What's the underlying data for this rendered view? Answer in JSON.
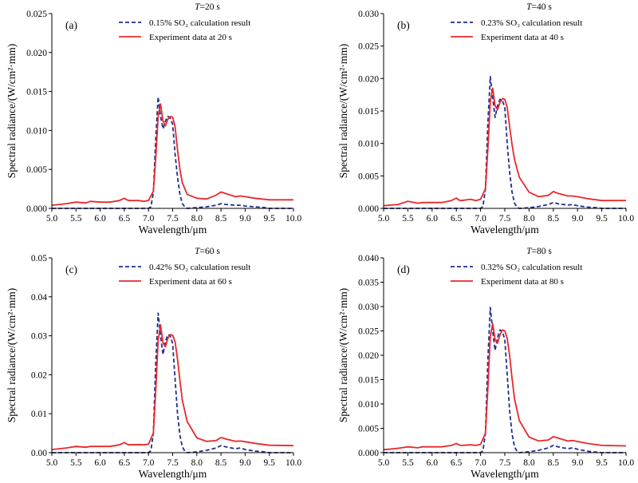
{
  "chart_data": [
    {
      "type": "line",
      "panel_label": "(a)",
      "title": "T=20 s",
      "title_var": "T",
      "title_rest": "=20 s",
      "xlabel": "Wavelength/μm",
      "ylabel": "Spectral radiance/(W/cm²·mm)",
      "xlim": [
        5.0,
        10.0
      ],
      "ylim": [
        0,
        0.025
      ],
      "xticks": [
        "5.0",
        "5.5",
        "6.0",
        "6.5",
        "7.0",
        "7.5",
        "8.0",
        "8.5",
        "9.0",
        "9.5",
        "10.0"
      ],
      "yticks": [
        "0.000",
        "0.005",
        "0.010",
        "0.015",
        "0.020",
        "0.025"
      ],
      "grid": false,
      "legend_position": "top-center",
      "series": [
        {
          "name": "0.15% SO₂ calculation result",
          "color": "#1f2f8f",
          "style": "dashed",
          "x": [
            5.0,
            7.0,
            7.05,
            7.1,
            7.15,
            7.2,
            7.25,
            7.3,
            7.35,
            7.4,
            7.45,
            7.5,
            7.55,
            7.6,
            7.65,
            7.7,
            7.75,
            7.8,
            8.0,
            8.2,
            8.4,
            8.5,
            8.6,
            8.8,
            8.9,
            9.0,
            9.2,
            9.4,
            9.5,
            10.0
          ],
          "y": [
            0.0,
            0.0,
            0.0002,
            0.002,
            0.009,
            0.0143,
            0.0118,
            0.0102,
            0.0112,
            0.0118,
            0.0116,
            0.0108,
            0.007,
            0.004,
            0.0018,
            0.0006,
            0.0002,
            0.0,
            0.0001,
            0.0002,
            0.0004,
            0.0006,
            0.0005,
            0.0004,
            0.0004,
            0.0003,
            0.0002,
            0.0001,
            0.0,
            0.0
          ]
        },
        {
          "name": "Experiment data at 20 s",
          "color": "#e8282b",
          "style": "solid",
          "x": [
            5.0,
            5.3,
            5.5,
            5.7,
            5.8,
            6.0,
            6.2,
            6.4,
            6.5,
            6.55,
            6.6,
            6.8,
            6.9,
            7.0,
            7.1,
            7.15,
            7.2,
            7.25,
            7.3,
            7.35,
            7.4,
            7.45,
            7.5,
            7.55,
            7.6,
            7.65,
            7.7,
            7.8,
            8.0,
            8.2,
            8.4,
            8.5,
            8.6,
            8.8,
            8.9,
            9.0,
            9.2,
            9.5,
            10.0
          ],
          "y": [
            0.0004,
            0.0006,
            0.0008,
            0.0007,
            0.0009,
            0.0008,
            0.0008,
            0.001,
            0.0013,
            0.0011,
            0.001,
            0.001,
            0.0009,
            0.001,
            0.0022,
            0.0065,
            0.0118,
            0.0134,
            0.0112,
            0.0106,
            0.0114,
            0.0118,
            0.0117,
            0.0105,
            0.0075,
            0.005,
            0.0033,
            0.0018,
            0.0013,
            0.0012,
            0.0017,
            0.0021,
            0.0019,
            0.0015,
            0.0016,
            0.0015,
            0.0013,
            0.0011,
            0.0011
          ]
        }
      ]
    },
    {
      "type": "line",
      "panel_label": "(b)",
      "title": "T=40 s",
      "title_var": "T",
      "title_rest": "=40 s",
      "xlabel": "Wavelength/μm",
      "ylabel": "Spectral radiance/(W/cm²·mm)",
      "xlim": [
        5.0,
        10.0
      ],
      "ylim": [
        0,
        0.03
      ],
      "xticks": [
        "5.0",
        "5.5",
        "6.0",
        "6.5",
        "7.0",
        "7.5",
        "8.0",
        "8.5",
        "9.0",
        "9.5",
        "10.0"
      ],
      "yticks": [
        "0.000",
        "0.005",
        "0.010",
        "0.015",
        "0.020",
        "0.025",
        "0.030"
      ],
      "grid": false,
      "legend_position": "top-center",
      "series": [
        {
          "name": "0.23% SO₂ calculation result",
          "color": "#1f2f8f",
          "style": "dashed",
          "x": [
            5.0,
            7.0,
            7.05,
            7.1,
            7.15,
            7.2,
            7.25,
            7.3,
            7.35,
            7.4,
            7.45,
            7.5,
            7.55,
            7.6,
            7.65,
            7.7,
            7.75,
            7.8,
            8.0,
            8.2,
            8.4,
            8.5,
            8.6,
            8.8,
            8.9,
            9.0,
            9.2,
            9.4,
            9.5,
            10.0
          ],
          "y": [
            0.0,
            0.0,
            0.0003,
            0.003,
            0.013,
            0.0203,
            0.017,
            0.014,
            0.0158,
            0.0168,
            0.0166,
            0.0155,
            0.01,
            0.0055,
            0.0025,
            0.0008,
            0.0002,
            0.0,
            0.0001,
            0.0003,
            0.0006,
            0.0009,
            0.0007,
            0.0005,
            0.0006,
            0.0004,
            0.0002,
            0.0001,
            0.0,
            0.0
          ]
        },
        {
          "name": "Experiment data at 40 s",
          "color": "#e8282b",
          "style": "solid",
          "x": [
            5.0,
            5.3,
            5.5,
            5.7,
            5.8,
            6.0,
            6.2,
            6.4,
            6.5,
            6.55,
            6.6,
            6.8,
            6.9,
            7.0,
            7.1,
            7.15,
            7.2,
            7.25,
            7.3,
            7.35,
            7.4,
            7.45,
            7.5,
            7.55,
            7.6,
            7.65,
            7.7,
            7.8,
            8.0,
            8.2,
            8.4,
            8.5,
            8.6,
            8.8,
            8.9,
            9.0,
            9.2,
            9.5,
            10.0
          ],
          "y": [
            0.0004,
            0.0006,
            0.0011,
            0.0008,
            0.0009,
            0.0009,
            0.0009,
            0.0012,
            0.0016,
            0.0013,
            0.0012,
            0.0014,
            0.0012,
            0.0014,
            0.003,
            0.009,
            0.0165,
            0.0185,
            0.0158,
            0.0152,
            0.0163,
            0.0169,
            0.0168,
            0.0155,
            0.0125,
            0.0098,
            0.0075,
            0.0048,
            0.0025,
            0.0018,
            0.002,
            0.0026,
            0.0023,
            0.0019,
            0.0019,
            0.0018,
            0.0015,
            0.0012,
            0.0012
          ]
        }
      ]
    },
    {
      "type": "line",
      "panel_label": "(c)",
      "title": "T=60 s",
      "title_var": "T",
      "title_rest": "=60 s",
      "xlabel": "Wavelength/μm",
      "ylabel": "Spectral radiance/(W/cm²·mm)",
      "xlim": [
        5.0,
        10.0
      ],
      "ylim": [
        0,
        0.05
      ],
      "xticks": [
        "5.0",
        "5.5",
        "6.0",
        "6.5",
        "7.0",
        "7.5",
        "8.0",
        "8.5",
        "9.0",
        "9.5",
        "10.0"
      ],
      "yticks": [
        "0.00",
        "0.01",
        "0.02",
        "0.03",
        "0.04",
        "0.05"
      ],
      "grid": false,
      "legend_position": "top-center",
      "series": [
        {
          "name": "0.42% SO₂ calculation result",
          "color": "#1f2f8f",
          "style": "dashed",
          "x": [
            5.0,
            7.0,
            7.05,
            7.1,
            7.15,
            7.2,
            7.25,
            7.3,
            7.35,
            7.4,
            7.45,
            7.5,
            7.55,
            7.6,
            7.65,
            7.7,
            7.75,
            7.8,
            8.0,
            8.2,
            8.4,
            8.5,
            8.6,
            8.8,
            8.9,
            9.0,
            9.2,
            9.4,
            9.5,
            10.0
          ],
          "y": [
            0.0,
            0.0,
            0.0005,
            0.005,
            0.023,
            0.0358,
            0.03,
            0.0252,
            0.0285,
            0.0303,
            0.03,
            0.028,
            0.019,
            0.01,
            0.0045,
            0.0015,
            0.0004,
            0.0,
            0.0002,
            0.0006,
            0.0012,
            0.0018,
            0.0015,
            0.001,
            0.0012,
            0.0008,
            0.0004,
            0.0002,
            0.0,
            0.0
          ]
        },
        {
          "name": "Experiment data at 60 s",
          "color": "#e8282b",
          "style": "solid",
          "x": [
            5.0,
            5.3,
            5.5,
            5.7,
            5.8,
            6.0,
            6.2,
            6.4,
            6.5,
            6.55,
            6.6,
            6.8,
            6.9,
            7.0,
            7.1,
            7.15,
            7.2,
            7.25,
            7.3,
            7.35,
            7.4,
            7.45,
            7.5,
            7.55,
            7.6,
            7.65,
            7.7,
            7.8,
            8.0,
            8.2,
            8.4,
            8.5,
            8.6,
            8.8,
            8.9,
            9.0,
            9.2,
            9.5,
            10.0
          ],
          "y": [
            0.0008,
            0.0012,
            0.0016,
            0.0014,
            0.0016,
            0.0016,
            0.0016,
            0.002,
            0.0026,
            0.0022,
            0.002,
            0.0021,
            0.002,
            0.0022,
            0.005,
            0.016,
            0.029,
            0.0328,
            0.0282,
            0.0272,
            0.0293,
            0.0303,
            0.0301,
            0.0285,
            0.024,
            0.0185,
            0.0135,
            0.008,
            0.0038,
            0.0029,
            0.0031,
            0.0039,
            0.0035,
            0.0029,
            0.003,
            0.0028,
            0.0024,
            0.0019,
            0.0018
          ]
        }
      ]
    },
    {
      "type": "line",
      "panel_label": "(d)",
      "title": "T=80 s",
      "title_var": "T",
      "title_rest": "=80 s",
      "xlabel": "Wavelength/μm",
      "ylabel": "Spectral radiance/(W/cm²·mm)",
      "xlim": [
        5.0,
        10.0
      ],
      "ylim": [
        0,
        0.04
      ],
      "xticks": [
        "5.0",
        "5.5",
        "6.0",
        "6.5",
        "7.0",
        "7.5",
        "8.0",
        "8.5",
        "9.0",
        "9.5",
        "10.0"
      ],
      "yticks": [
        "0.000",
        "0.005",
        "0.010",
        "0.015",
        "0.020",
        "0.025",
        "0.030",
        "0.035",
        "0.040"
      ],
      "grid": false,
      "legend_position": "top-center",
      "series": [
        {
          "name": "0.32% SO₂ calculation result",
          "color": "#1f2f8f",
          "style": "dashed",
          "x": [
            5.0,
            7.0,
            7.05,
            7.1,
            7.15,
            7.2,
            7.25,
            7.3,
            7.35,
            7.4,
            7.45,
            7.5,
            7.55,
            7.6,
            7.65,
            7.7,
            7.75,
            7.8,
            8.0,
            8.2,
            8.4,
            8.5,
            8.6,
            8.8,
            8.9,
            9.0,
            9.2,
            9.4,
            9.5,
            10.0
          ],
          "y": [
            0.0,
            0.0,
            0.0004,
            0.004,
            0.019,
            0.0298,
            0.025,
            0.021,
            0.0237,
            0.0252,
            0.0249,
            0.0232,
            0.016,
            0.0085,
            0.0038,
            0.0012,
            0.0003,
            0.0,
            0.0002,
            0.0005,
            0.001,
            0.0015,
            0.0012,
            0.0008,
            0.001,
            0.0007,
            0.0003,
            0.0001,
            0.0,
            0.0
          ]
        },
        {
          "name": "Experiment data at 80 s",
          "color": "#e8282b",
          "style": "solid",
          "x": [
            5.0,
            5.3,
            5.5,
            5.7,
            5.8,
            6.0,
            6.2,
            6.4,
            6.5,
            6.55,
            6.6,
            6.8,
            6.9,
            7.0,
            7.1,
            7.15,
            7.2,
            7.25,
            7.3,
            7.35,
            7.4,
            7.45,
            7.5,
            7.55,
            7.6,
            7.65,
            7.7,
            7.8,
            8.0,
            8.2,
            8.4,
            8.5,
            8.6,
            8.8,
            8.9,
            9.0,
            9.2,
            9.5,
            10.0
          ],
          "y": [
            0.0006,
            0.0009,
            0.0012,
            0.001,
            0.0012,
            0.0012,
            0.0012,
            0.0015,
            0.0019,
            0.0016,
            0.0015,
            0.0016,
            0.0015,
            0.0017,
            0.004,
            0.013,
            0.0238,
            0.0265,
            0.0232,
            0.0225,
            0.0242,
            0.0252,
            0.025,
            0.0235,
            0.0198,
            0.0152,
            0.011,
            0.0066,
            0.0032,
            0.0024,
            0.0026,
            0.0033,
            0.003,
            0.0024,
            0.0025,
            0.0023,
            0.0019,
            0.0015,
            0.0014
          ]
        }
      ]
    }
  ]
}
